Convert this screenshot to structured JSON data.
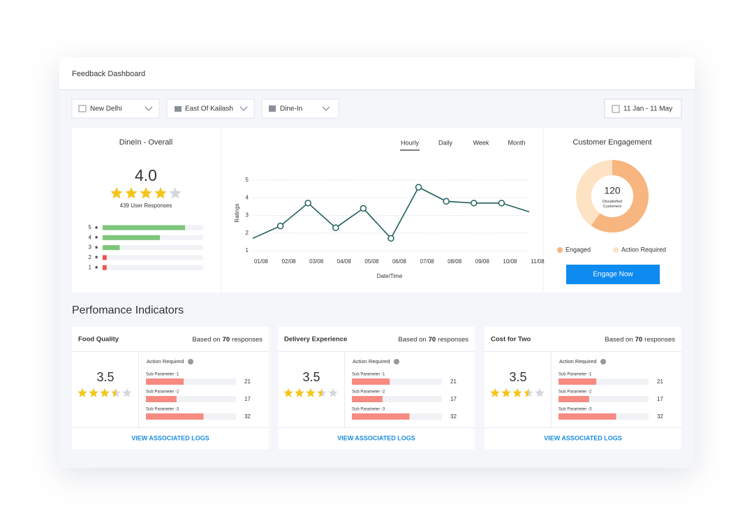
{
  "header": {
    "title": "Feedback Dashboard"
  },
  "filters": [
    "New Delhi",
    "East Of Kailash",
    "Dine-In"
  ],
  "date_range": "11 Jan - 11 May",
  "overall": {
    "title": "DineIn - Overall",
    "rating": {
      "value": 4,
      "label": "4.0"
    },
    "responses": "439 User Responses",
    "distribution": {
      "labels": [
        5,
        4,
        3,
        2,
        1
      ],
      "values": [
        82,
        57,
        17,
        4,
        4
      ],
      "xlim": [
        0,
        100
      ],
      "colors": [
        "#7dc67b",
        "#7dc67b",
        "#7dc67b",
        "#f0524f",
        "#f0524f"
      ]
    }
  },
  "trend": {
    "type": "line",
    "tabs": [
      "Hourly",
      "Daily",
      "Week",
      "Month"
    ],
    "active_tab": 0,
    "y_label": "Ratings",
    "x_label": "Date/Time",
    "categories": [
      "01/08",
      "02/08",
      "03/08",
      "04/08",
      "05/08",
      "06/08",
      "07/08",
      "08/08",
      "09/08",
      "10/08",
      "11/08"
    ],
    "values": [
      1.7,
      2.4,
      3.7,
      2.3,
      3.4,
      1.7,
      4.6,
      3.8,
      3.7,
      3.7,
      3.2
    ],
    "ylim": [
      1,
      5
    ],
    "yticks": [
      1,
      2,
      3,
      4,
      5
    ],
    "color": "#1e5f5c"
  },
  "engagement": {
    "type": "pie",
    "title": "Customer Engagement",
    "center_value": 120,
    "center_label": "Dissatisfied Customers",
    "series": [
      {
        "name": "Engaged",
        "value": 60,
        "color": "#f7b57f"
      },
      {
        "name": "Action Required",
        "value": 40,
        "color": "#fde3c3"
      }
    ],
    "button": "Engage Now"
  },
  "performance": {
    "title": "Perfomance Indicators",
    "xlim": [
      0,
      50
    ],
    "cards": [
      {
        "title": "Food Quality",
        "based_on": "Based on",
        "responses": 70,
        "responses_suffix": "responses",
        "rating": 3.5,
        "action_label": "Action Required",
        "sub_parameters": [
          {
            "name": "Sub Parameter -1",
            "value": 21
          },
          {
            "name": "Sub Parameter -2",
            "value": 17
          },
          {
            "name": "Sub Parameter -3",
            "value": 32
          }
        ],
        "link": "VIEW ASSOCIATED LOGS"
      },
      {
        "title": "Delivery Experience",
        "based_on": "Based on",
        "responses": 70,
        "responses_suffix": "responses",
        "rating": 3.5,
        "action_label": "Action Required",
        "sub_parameters": [
          {
            "name": "Sub Parameter -1",
            "value": 21
          },
          {
            "name": "Sub Parameter -2",
            "value": 17
          },
          {
            "name": "Sub Parameter -3",
            "value": 32
          }
        ],
        "link": "VIEW ASSOCIATED LOGS"
      },
      {
        "title": "Cost for Two",
        "based_on": "Based on",
        "responses": 70,
        "responses_suffix": "responses",
        "rating": 3.5,
        "action_label": "Action Required",
        "sub_parameters": [
          {
            "name": "Sub Parameter -1",
            "value": 21
          },
          {
            "name": "Sub Parameter -2",
            "value": 17
          },
          {
            "name": "Sub Parameter -3",
            "value": 32
          }
        ],
        "link": "VIEW ASSOCIATED LOGS"
      }
    ]
  }
}
